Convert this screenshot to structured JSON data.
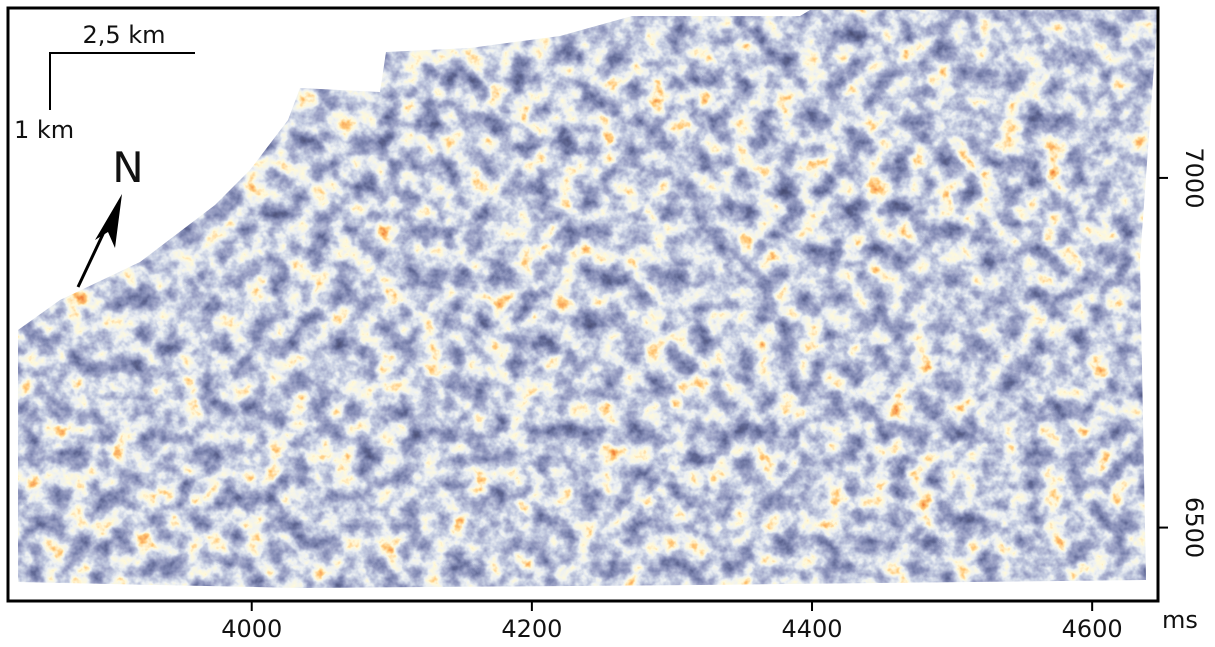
{
  "x_axis": {
    "unit": "ms",
    "ticks": [
      4000,
      4200,
      4400,
      4600
    ],
    "xlim": [
      3826,
      4647
    ]
  },
  "y_axis": {
    "ticks": [
      7000,
      6500
    ],
    "ylim": [
      6395,
      7243
    ]
  },
  "scale_bar": {
    "horizontal": "2,5 km",
    "vertical": "1 km"
  },
  "north_arrow": "N"
}
